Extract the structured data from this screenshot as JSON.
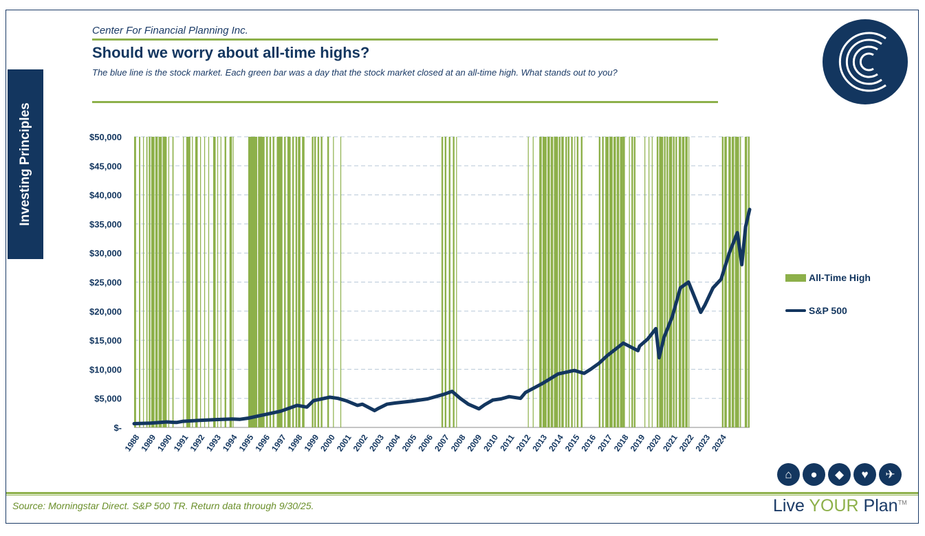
{
  "header": {
    "company": "Center For Financial Planning Inc.",
    "title": "Should we worry about all-time highs?",
    "subtitle": "The blue line is the stock market. Each green bar was a day that the stock market closed at an all-time high. What stands out to you?"
  },
  "side_tab": {
    "label": "Investing Principles"
  },
  "footer": {
    "source": "Source: Morningstar Direct. S&P 500 TR. Return data through 9/30/25.",
    "brand_live": "Live ",
    "brand_your": "YOUR",
    "brand_plan": " Plan",
    "brand_tm": "TM"
  },
  "icons": [
    "house-icon",
    "piggy-bank-icon",
    "graduation-cap-icon",
    "hand-heart-icon",
    "airplane-icon"
  ],
  "colors": {
    "navy": "#13365f",
    "green": "#8db04a"
  },
  "legend": {
    "ath": "All-Time High",
    "sp": "S&P 500"
  },
  "chart_data": {
    "type": "line",
    "title": "Should we worry about all-time highs?",
    "ylim": [
      0,
      50000
    ],
    "yticks": [
      0,
      5000,
      10000,
      15000,
      20000,
      25000,
      30000,
      35000,
      40000,
      45000,
      50000
    ],
    "ytick_labels": [
      "$-",
      "$5,000",
      "$10,000",
      "$15,000",
      "$20,000",
      "$25,000",
      "$30,000",
      "$35,000",
      "$40,000",
      "$45,000",
      "$50,000"
    ],
    "xlim": [
      1988,
      2025.75
    ],
    "xtick_labels": [
      "1988",
      "1989",
      "1990",
      "1991",
      "1992",
      "1993",
      "1994",
      "1995",
      "1996",
      "1997",
      "1998",
      "1999",
      "2000",
      "2001",
      "2002",
      "2003",
      "2004",
      "2005",
      "2006",
      "2007",
      "2008",
      "2009",
      "2010",
      "2011",
      "2012",
      "2013",
      "2014",
      "2015",
      "2016",
      "2017",
      "2018",
      "2019",
      "2020",
      "2021",
      "2022",
      "2023",
      "2024"
    ],
    "series": [
      {
        "name": "S&P 500",
        "x": [
          1988.0,
          1989.0,
          1990.0,
          1990.6,
          1991.0,
          1992.0,
          1993.0,
          1994.0,
          1994.5,
          1995.0,
          1996.0,
          1997.0,
          1998.0,
          1998.6,
          1999.0,
          2000.0,
          2000.5,
          2001.0,
          2001.7,
          2002.0,
          2002.75,
          2003.0,
          2003.5,
          2004.0,
          2005.0,
          2006.0,
          2007.0,
          2007.5,
          2008.0,
          2008.5,
          2009.15,
          2009.5,
          2010.0,
          2010.5,
          2011.0,
          2011.7,
          2012.0,
          2013.0,
          2014.0,
          2015.0,
          2015.6,
          2016.0,
          2016.5,
          2017.0,
          2018.0,
          2018.9,
          2019.0,
          2019.5,
          2020.0,
          2020.2,
          2020.5,
          2021.0,
          2021.5,
          2022.0,
          2022.75,
          2023.0,
          2023.5,
          2024.0,
          2024.5,
          2025.0,
          2025.27,
          2025.5,
          2025.75
        ],
        "y": [
          650,
          750,
          950,
          850,
          1050,
          1200,
          1350,
          1450,
          1400,
          1600,
          2200,
          2800,
          3800,
          3500,
          4600,
          5200,
          5000,
          4600,
          3800,
          4000,
          2900,
          3300,
          4000,
          4200,
          4500,
          4900,
          5700,
          6200,
          5000,
          4000,
          3200,
          3900,
          4700,
          4900,
          5300,
          5000,
          6000,
          7500,
          9200,
          9800,
          9300,
          10000,
          11000,
          12300,
          14500,
          13200,
          14000,
          15200,
          17000,
          12000,
          15500,
          19000,
          24000,
          25000,
          19800,
          21000,
          24000,
          25500,
          30000,
          33500,
          28000,
          34500,
          37500
        ]
      }
    ],
    "all_time_high_periods": [
      [
        1988.0,
        1988.12
      ],
      [
        1988.3,
        1988.38
      ],
      [
        1988.55,
        1988.6
      ],
      [
        1988.75,
        1988.82
      ],
      [
        1988.9,
        1989.0
      ],
      [
        1989.05,
        1989.25
      ],
      [
        1989.3,
        1989.45
      ],
      [
        1989.5,
        1989.7
      ],
      [
        1989.75,
        1990.0
      ],
      [
        1990.1,
        1990.14
      ],
      [
        1990.35,
        1990.42
      ],
      [
        1991.0,
        1991.05
      ],
      [
        1991.2,
        1991.45
      ],
      [
        1991.55,
        1991.6
      ],
      [
        1991.75,
        1991.9
      ],
      [
        1992.05,
        1992.1
      ],
      [
        1992.3,
        1992.35
      ],
      [
        1992.55,
        1992.6
      ],
      [
        1992.85,
        1993.0
      ],
      [
        1993.1,
        1993.15
      ],
      [
        1993.3,
        1993.35
      ],
      [
        1993.55,
        1993.65
      ],
      [
        1993.85,
        1994.0
      ],
      [
        1994.05,
        1994.1
      ],
      [
        1995.0,
        1995.55
      ],
      [
        1995.6,
        1996.0
      ],
      [
        1996.1,
        1996.2
      ],
      [
        1996.3,
        1996.4
      ],
      [
        1996.5,
        1996.6
      ],
      [
        1996.75,
        1997.1
      ],
      [
        1997.2,
        1997.3
      ],
      [
        1997.4,
        1997.6
      ],
      [
        1997.7,
        1997.8
      ],
      [
        1997.9,
        1998.0
      ],
      [
        1998.05,
        1998.2
      ],
      [
        1998.3,
        1998.45
      ],
      [
        1998.9,
        1999.0
      ],
      [
        1999.05,
        1999.15
      ],
      [
        1999.25,
        1999.35
      ],
      [
        1999.45,
        1999.55
      ],
      [
        1999.85,
        1999.95
      ],
      [
        2000.2,
        2000.25
      ],
      [
        2000.65,
        2000.7
      ],
      [
        2006.85,
        2006.95
      ],
      [
        2007.05,
        2007.15
      ],
      [
        2007.3,
        2007.4
      ],
      [
        2007.55,
        2007.65
      ],
      [
        2007.75,
        2007.8
      ],
      [
        2012.15,
        2012.2
      ],
      [
        2012.45,
        2012.5
      ],
      [
        2012.85,
        2013.0
      ],
      [
        2013.05,
        2013.3
      ],
      [
        2013.35,
        2013.5
      ],
      [
        2013.55,
        2013.7
      ],
      [
        2013.75,
        2014.0
      ],
      [
        2014.05,
        2014.15
      ],
      [
        2014.2,
        2014.35
      ],
      [
        2014.45,
        2014.55
      ],
      [
        2014.6,
        2014.7
      ],
      [
        2014.8,
        2014.9
      ],
      [
        2015.0,
        2015.05
      ],
      [
        2015.15,
        2015.25
      ],
      [
        2015.4,
        2015.5
      ],
      [
        2016.5,
        2016.6
      ],
      [
        2016.7,
        2016.8
      ],
      [
        2016.9,
        2017.1
      ],
      [
        2017.15,
        2017.35
      ],
      [
        2017.4,
        2017.55
      ],
      [
        2017.6,
        2017.75
      ],
      [
        2017.8,
        2017.95
      ],
      [
        2017.95,
        2018.1
      ],
      [
        2018.35,
        2018.4
      ],
      [
        2018.5,
        2018.6
      ],
      [
        2018.65,
        2018.75
      ],
      [
        2019.3,
        2019.35
      ],
      [
        2019.55,
        2019.6
      ],
      [
        2019.75,
        2019.8
      ],
      [
        2020.05,
        2020.15
      ],
      [
        2020.2,
        2020.45
      ],
      [
        2020.5,
        2020.6
      ],
      [
        2020.65,
        2020.75
      ],
      [
        2020.8,
        2021.0
      ],
      [
        2021.05,
        2021.15
      ],
      [
        2021.2,
        2021.3
      ],
      [
        2021.4,
        2021.55
      ],
      [
        2021.6,
        2021.75
      ],
      [
        2021.8,
        2021.95
      ],
      [
        2022.0,
        2022.05
      ],
      [
        2024.05,
        2024.15
      ],
      [
        2024.2,
        2024.35
      ],
      [
        2024.45,
        2024.6
      ],
      [
        2024.65,
        2024.8
      ],
      [
        2024.85,
        2025.1
      ],
      [
        2025.15,
        2025.22
      ],
      [
        2025.45,
        2025.6
      ],
      [
        2025.65,
        2025.75
      ]
    ]
  }
}
